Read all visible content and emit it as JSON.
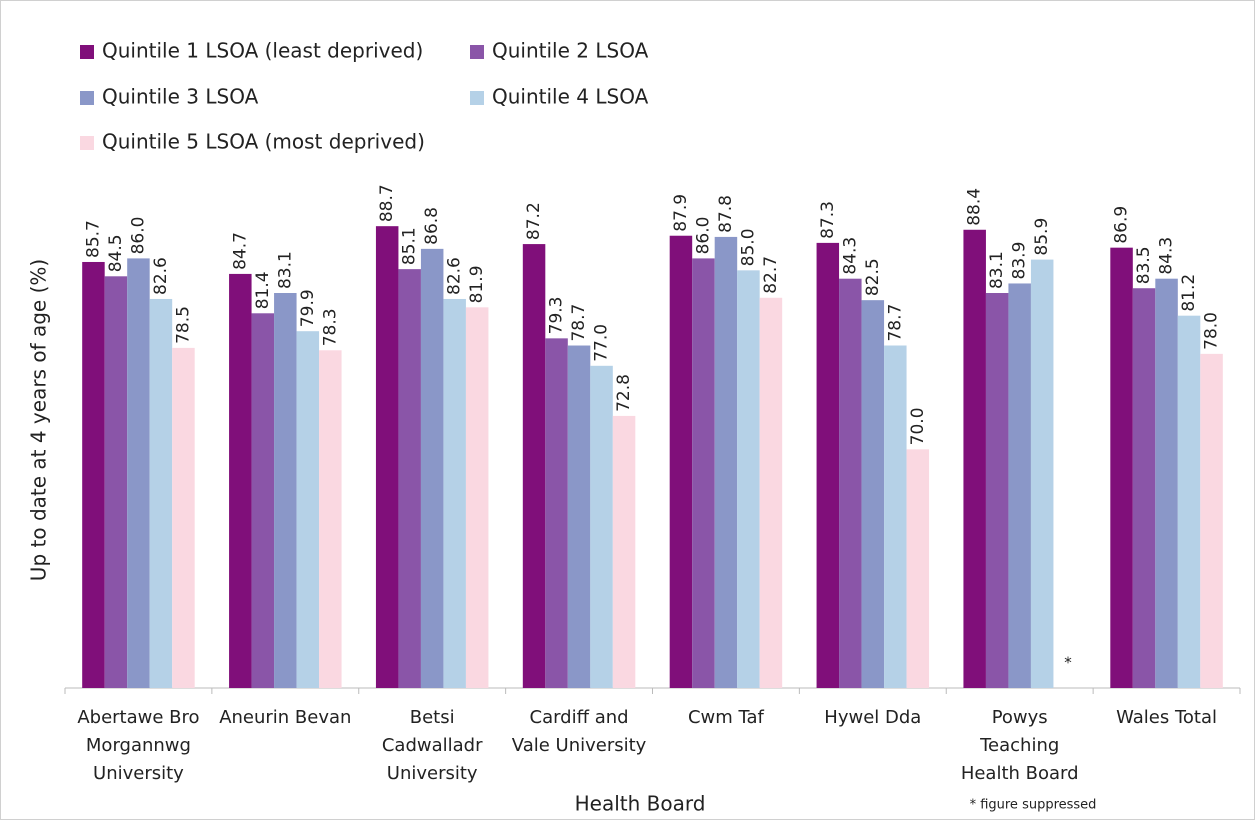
{
  "chart_data": {
    "type": "bar",
    "y_label": "Up to date at 4 years of age (%)",
    "x_label": "Health Board",
    "categories": [
      "Abertawe Bro Morgannwg University",
      "Aneurin Bevan",
      "Betsi Cadwalladr University",
      "Cardiff and Vale University",
      "Cwm Taf",
      "Hywel Dda",
      "Powys Teaching Health Board",
      "Wales Total"
    ],
    "series": [
      {
        "name": "Quintile 1 LSOA (least deprived)",
        "color": "#800f7a",
        "values": [
          85.7,
          84.7,
          88.7,
          87.2,
          87.9,
          87.3,
          88.4,
          86.9
        ],
        "value_labels": [
          "85.7",
          "84.7",
          "88.7",
          "87.2",
          "87.9",
          "87.3",
          "88.4",
          "86.9"
        ]
      },
      {
        "name": "Quintile 2 LSOA",
        "color": "#8a55a8",
        "values": [
          84.5,
          81.4,
          85.1,
          79.3,
          86.0,
          84.3,
          83.1,
          83.5
        ],
        "value_labels": [
          "84.5",
          "81.4",
          "85.1",
          "79.3",
          "86.0",
          "84.3",
          "83.1",
          "83.5"
        ]
      },
      {
        "name": "Quintile 3 LSOA",
        "color": "#8a97c8",
        "values": [
          86.0,
          83.1,
          86.8,
          78.7,
          87.8,
          82.5,
          83.9,
          84.3
        ],
        "value_labels": [
          "86.0",
          "83.1",
          "86.8",
          "78.7",
          "87.8",
          "82.5",
          "83.9",
          "84.3"
        ]
      },
      {
        "name": "Quintile 4 LSOA",
        "color": "#b5d1e7",
        "values": [
          82.6,
          79.9,
          82.6,
          77.0,
          85.0,
          78.7,
          85.9,
          81.2
        ],
        "value_labels": [
          "82.6",
          "79.9",
          "82.6",
          "77.0",
          "85.0",
          "78.7",
          "85.9",
          "81.2"
        ]
      },
      {
        "name": "Quintile 5 LSOA (most deprived)",
        "color": "#fad8e1",
        "values": [
          78.5,
          78.3,
          81.9,
          72.8,
          82.7,
          70.0,
          null,
          78.0
        ],
        "value_labels": [
          "78.5",
          "78.3",
          "81.9",
          "72.8",
          "82.7",
          "70.0",
          null,
          "78.0"
        ]
      }
    ],
    "annotations": [
      "*",
      "* figure suppressed"
    ],
    "ylim": [
      50,
      95
    ],
    "legend": "top-left"
  }
}
